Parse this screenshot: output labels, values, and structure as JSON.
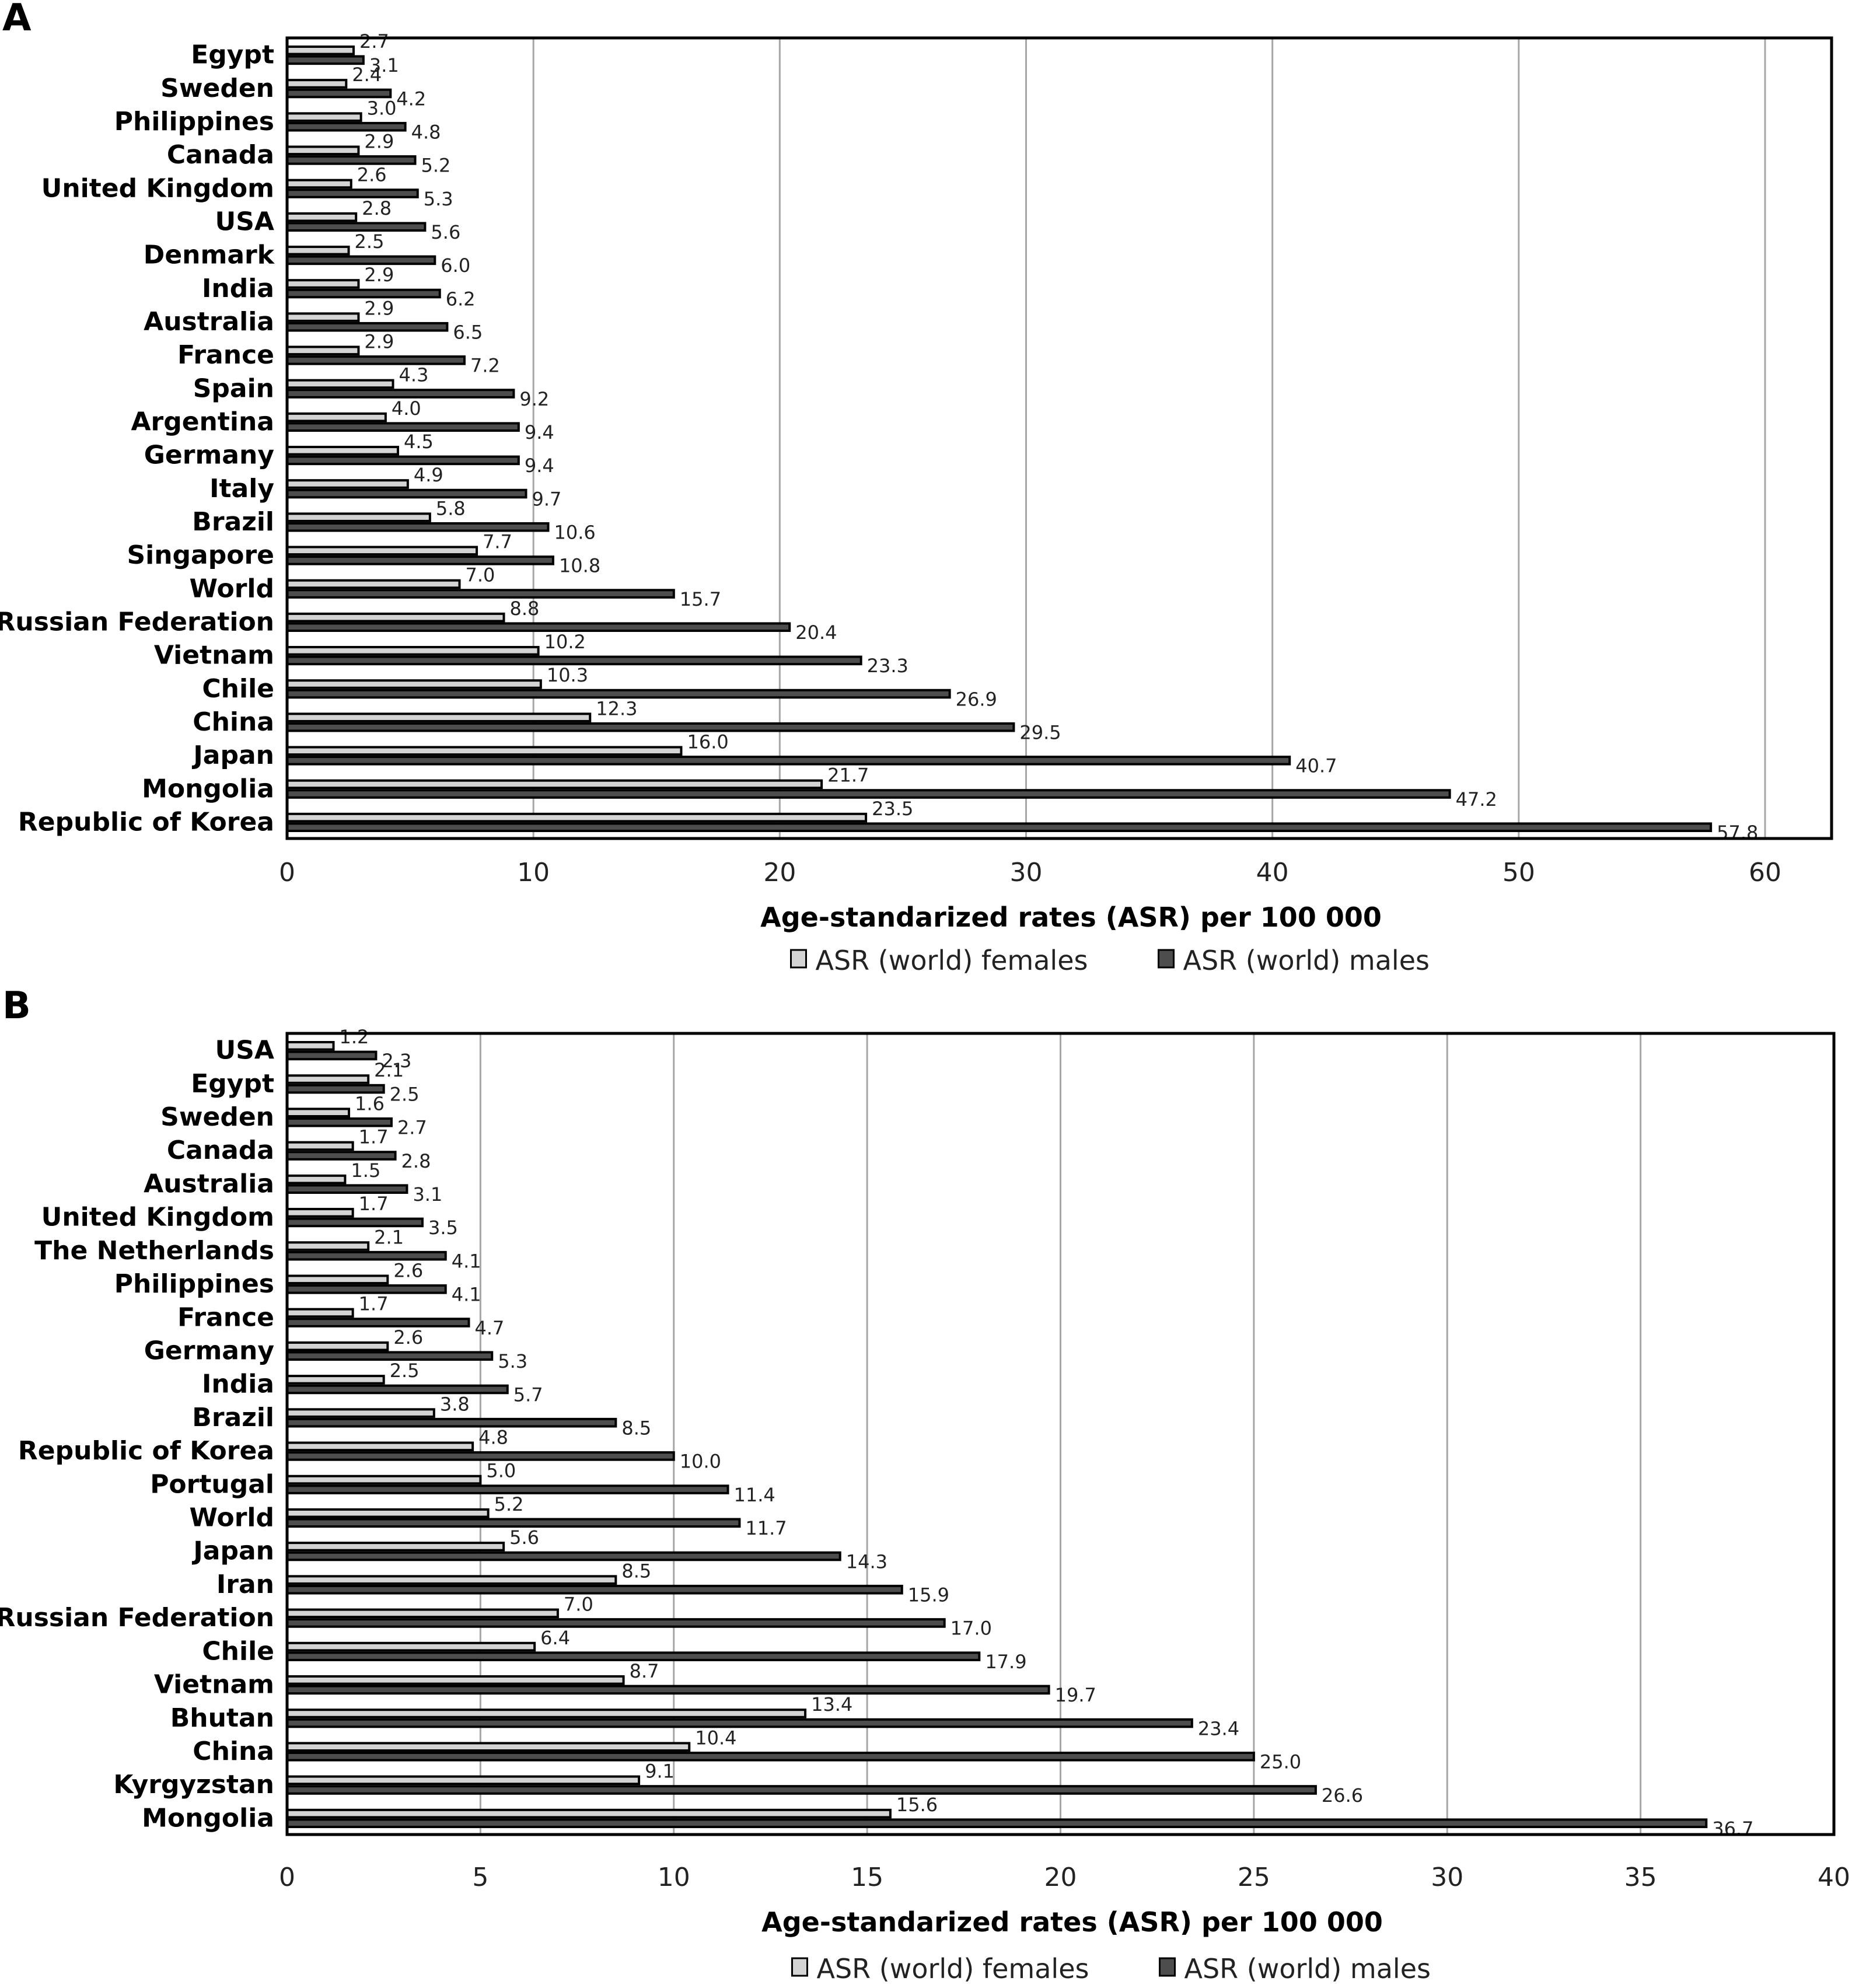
{
  "colors": {
    "females_fill": "#d4d4d4",
    "males_fill": "#4d4d4d",
    "bar_stroke": "#000000",
    "gridline": "#a6a6a6",
    "frame": "#000000"
  },
  "chart_data": [
    {
      "panel": "A",
      "type": "bar",
      "orientation": "horizontal",
      "title": "",
      "xlabel": "Age-standarized rates (ASR) per 100 000",
      "ylabel": "",
      "xlim": [
        0,
        62.7
      ],
      "xticks": [
        0,
        10,
        20,
        30,
        40,
        50,
        60
      ],
      "grid": true,
      "legend_position": "bottom",
      "categories": [
        "Egypt",
        "Sweden",
        "Philippines",
        "Canada",
        "United Kingdom",
        "USA",
        "Denmark",
        "India",
        "Australia",
        "France",
        "Spain",
        "Argentina",
        "Germany",
        "Italy",
        "Brazil",
        "Singapore",
        "World",
        "Russian Federation",
        "Vietnam",
        "Chile",
        "China",
        "Japan",
        "Mongolia",
        "Republic of Korea"
      ],
      "series": [
        {
          "name": "ASR (world) females",
          "values": [
            2.7,
            2.4,
            3.0,
            2.9,
            2.6,
            2.8,
            2.5,
            2.9,
            2.9,
            2.9,
            4.3,
            4.0,
            4.5,
            4.9,
            5.8,
            7.7,
            7.0,
            8.8,
            10.2,
            10.3,
            12.3,
            16.0,
            21.7,
            23.5
          ]
        },
        {
          "name": "ASR (world) males",
          "values": [
            3.1,
            4.2,
            4.8,
            5.2,
            5.3,
            5.6,
            6.0,
            6.2,
            6.5,
            7.2,
            9.2,
            9.4,
            9.4,
            9.7,
            10.6,
            10.8,
            15.7,
            20.4,
            23.3,
            26.9,
            29.5,
            40.7,
            47.2,
            57.8
          ]
        }
      ]
    },
    {
      "panel": "B",
      "type": "bar",
      "orientation": "horizontal",
      "title": "",
      "xlabel": "Age-standarized rates (ASR) per 100 000",
      "ylabel": "",
      "xlim": [
        0,
        40
      ],
      "xticks": [
        0,
        5,
        10,
        15,
        20,
        25,
        30,
        35,
        40
      ],
      "grid": true,
      "legend_position": "bottom",
      "categories": [
        "USA",
        "Egypt",
        "Sweden",
        "Canada",
        "Australia",
        "United Kingdom",
        "The Netherlands",
        "Philippines",
        "France",
        "Germany",
        "India",
        "Brazil",
        "Republic of Korea",
        "Portugal",
        "World",
        "Japan",
        "Iran",
        "Russian Federation",
        "Chile",
        "Vietnam",
        "Bhutan",
        "China",
        "Kyrgyzstan",
        "Mongolia"
      ],
      "series": [
        {
          "name": "ASR (world) females",
          "values": [
            1.2,
            2.1,
            1.6,
            1.7,
            1.5,
            1.7,
            2.1,
            2.6,
            1.7,
            2.6,
            2.5,
            3.8,
            4.8,
            5.0,
            5.2,
            5.6,
            8.5,
            7.0,
            6.4,
            8.7,
            13.4,
            10.4,
            9.1,
            15.6
          ]
        },
        {
          "name": "ASR (world) males",
          "values": [
            2.3,
            2.5,
            2.7,
            2.8,
            3.1,
            3.5,
            4.1,
            4.1,
            4.7,
            5.3,
            5.7,
            8.5,
            10.0,
            11.4,
            11.7,
            14.3,
            15.9,
            17.0,
            17.9,
            19.7,
            23.4,
            25.0,
            26.6,
            36.7
          ]
        }
      ]
    }
  ]
}
